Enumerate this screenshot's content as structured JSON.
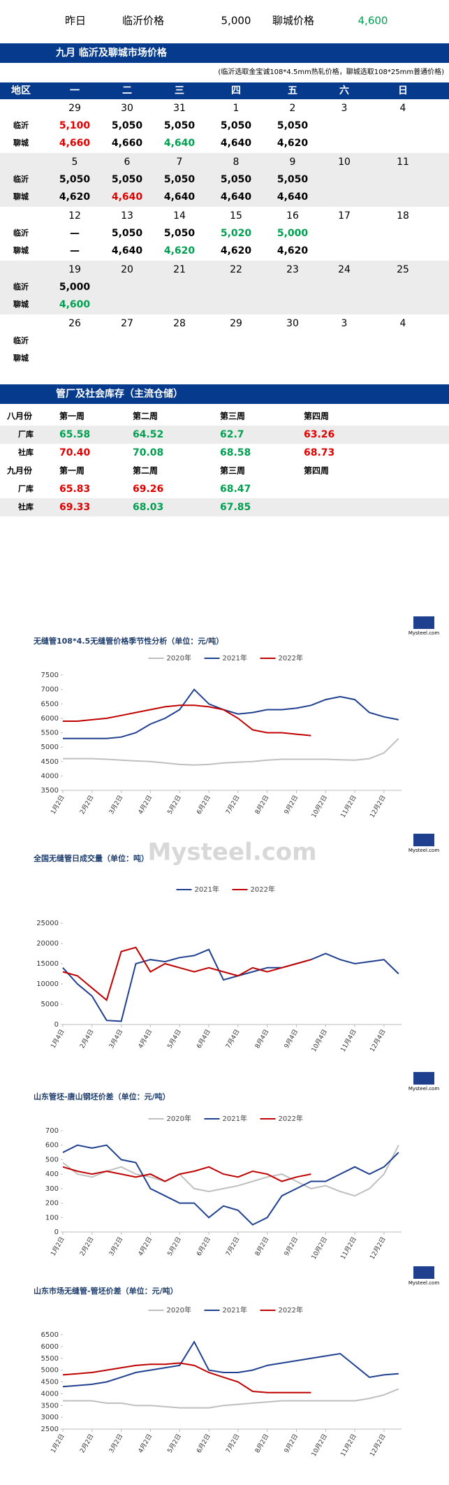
{
  "header": {
    "yesterday": "昨日",
    "linyi_label": "临沂价格",
    "linyi_price": "5,000",
    "liaocheng_label": "聊城价格",
    "liaocheng_price": "4,600",
    "liaocheng_color": "#00a050"
  },
  "calendar": {
    "title": "九月 临沂及聊城市场价格",
    "note": "(临沂选取金宝诚108*4.5mm热轧价格，聊城选取108*25mm普通价格)",
    "header": [
      "地区",
      "一",
      "二",
      "三",
      "四",
      "五",
      "六",
      "日"
    ],
    "row_labels": [
      "临沂",
      "聊城"
    ],
    "weeks": [
      {
        "dates": [
          "29",
          "30",
          "31",
          "1",
          "2",
          "3",
          "4"
        ],
        "linyi": [
          "5,100",
          "5,050",
          "5,050",
          "5,050",
          "5,050"
        ],
        "linyi_colors": [
          "#e00000",
          "#000000",
          "#000000",
          "#000000",
          "#000000"
        ],
        "liaocheng": [
          "4,660",
          "4,660",
          "4,640",
          "4,640",
          "4,620"
        ],
        "liaocheng_colors": [
          "#e00000",
          "#000000",
          "#00a050",
          "#000000",
          "#000000"
        ]
      },
      {
        "dates": [
          "5",
          "6",
          "7",
          "8",
          "9",
          "10",
          "11"
        ],
        "linyi": [
          "5,050",
          "5,050",
          "5,050",
          "5,050",
          "5,050"
        ],
        "linyi_colors": [
          "#000000",
          "#000000",
          "#000000",
          "#000000",
          "#000000"
        ],
        "liaocheng": [
          "4,620",
          "4,640",
          "4,640",
          "4,640",
          "4,640"
        ],
        "liaocheng_colors": [
          "#000000",
          "#e00000",
          "#000000",
          "#000000",
          "#000000"
        ]
      },
      {
        "dates": [
          "12",
          "13",
          "14",
          "15",
          "16",
          "17",
          "18"
        ],
        "linyi": [
          "—",
          "5,050",
          "5,050",
          "5,020",
          "5,000"
        ],
        "linyi_colors": [
          "#000000",
          "#000000",
          "#000000",
          "#00a050",
          "#00a050"
        ],
        "liaocheng": [
          "—",
          "4,640",
          "4,620",
          "4,620",
          "4,620"
        ],
        "liaocheng_colors": [
          "#000000",
          "#000000",
          "#00a050",
          "#000000",
          "#000000"
        ]
      },
      {
        "dates": [
          "19",
          "20",
          "21",
          "22",
          "23",
          "24",
          "25"
        ],
        "linyi": [
          "5,000"
        ],
        "linyi_colors": [
          "#000000"
        ],
        "liaocheng": [
          "4,600"
        ],
        "liaocheng_colors": [
          "#00a050"
        ]
      },
      {
        "dates": [
          "26",
          "27",
          "28",
          "29",
          "30",
          "3",
          "4"
        ],
        "linyi": [],
        "linyi_colors": [],
        "liaocheng": [],
        "liaocheng_colors": []
      }
    ]
  },
  "inventory": {
    "title": "管厂及社会库存（主流仓储）",
    "periods": [
      {
        "name": "八月份",
        "weeks": [
          "第一周",
          "第二周",
          "第三周",
          "第四周"
        ],
        "rows": [
          {
            "label": "厂库",
            "values": [
              "65.58",
              "64.52",
              "62.7",
              "63.26"
            ],
            "colors": [
              "#00a050",
              "#00a050",
              "#00a050",
              "#e00000"
            ]
          },
          {
            "label": "社库",
            "values": [
              "70.40",
              "70.08",
              "68.58",
              "68.73"
            ],
            "colors": [
              "#e00000",
              "#00a050",
              "#00a050",
              "#e00000"
            ]
          }
        ]
      },
      {
        "name": "九月份",
        "weeks": [
          "第一周",
          "第二周",
          "第三周",
          "第四周"
        ],
        "rows": [
          {
            "label": "厂库",
            "values": [
              "65.83",
              "69.26",
              "68.47"
            ],
            "colors": [
              "#e00000",
              "#e00000",
              "#00a050"
            ]
          },
          {
            "label": "社库",
            "values": [
              "69.33",
              "68.03",
              "67.85"
            ],
            "colors": [
              "#e00000",
              "#00a050",
              "#00a050"
            ]
          }
        ]
      }
    ]
  },
  "logo_text": "Mysteel.com",
  "chart_data": [
    {
      "type": "line",
      "title": "无缝管108*4.5无缝管价格季节性分析（单位：元/吨）",
      "x": [
        1,
        1.5,
        2,
        2.5,
        3,
        3.5,
        4,
        4.5,
        5,
        5.5,
        6,
        6.5,
        7,
        7.5,
        8,
        8.5,
        9,
        9.5,
        10,
        10.5,
        11,
        11.5,
        12,
        12.5
      ],
      "xlim": [
        1,
        12.6
      ],
      "xticks": [
        {
          "value": 1,
          "label": "1月2日"
        },
        {
          "value": 2,
          "label": "2月2日"
        },
        {
          "value": 3,
          "label": "3月2日"
        },
        {
          "value": 4,
          "label": "4月2日"
        },
        {
          "value": 5,
          "label": "5月2日"
        },
        {
          "value": 6,
          "label": "6月2日"
        },
        {
          "value": 7,
          "label": "7月2日"
        },
        {
          "value": 8,
          "label": "8月2日"
        },
        {
          "value": 9,
          "label": "9月2日"
        },
        {
          "value": 10,
          "label": "10月2日"
        },
        {
          "value": 11,
          "label": "11月2日"
        },
        {
          "value": 12,
          "label": "12月2日"
        }
      ],
      "ylim": [
        3500,
        7500
      ],
      "yticks": [
        3500,
        4000,
        4500,
        5000,
        5500,
        6000,
        6500,
        7000,
        7500
      ],
      "series": [
        {
          "name": "2020年",
          "color": "#bfbfbf",
          "values": [
            4600,
            4600,
            4600,
            4580,
            4550,
            4520,
            4500,
            4450,
            4400,
            4380,
            4400,
            4450,
            4480,
            4500,
            4550,
            4580,
            4580,
            4580,
            4580,
            4560,
            4550,
            4600,
            4800,
            5300
          ]
        },
        {
          "name": "2021年",
          "color": "#1f3f8f",
          "values": [
            5300,
            5300,
            5300,
            5300,
            5350,
            5500,
            5800,
            6000,
            6300,
            7000,
            6500,
            6300,
            6150,
            6200,
            6300,
            6300,
            6350,
            6450,
            6650,
            6750,
            6650,
            6200,
            6050,
            5950
          ]
        },
        {
          "name": "2022年",
          "color": "#c00000",
          "values": [
            5900,
            5900,
            5950,
            6000,
            6100,
            6200,
            6300,
            6400,
            6450,
            6450,
            6400,
            6300,
            6000,
            5600,
            5500,
            5500,
            5450,
            5400,
            null,
            null,
            null,
            null,
            null,
            null
          ]
        }
      ]
    },
    {
      "type": "line",
      "title": "全国无缝管日成交量（单位：吨）",
      "x": [
        1,
        1.5,
        2,
        2.5,
        3,
        3.5,
        4,
        4.5,
        5,
        5.5,
        6,
        6.5,
        7,
        7.5,
        8,
        8.5,
        9,
        9.5,
        10,
        10.5,
        11,
        11.5,
        12,
        12.5
      ],
      "xlim": [
        1,
        12.6
      ],
      "xticks": [
        {
          "value": 1,
          "label": "1月4日"
        },
        {
          "value": 2,
          "label": "2月4日"
        },
        {
          "value": 3,
          "label": "3月4日"
        },
        {
          "value": 4,
          "label": "4月4日"
        },
        {
          "value": 5,
          "label": "5月4日"
        },
        {
          "value": 6,
          "label": "6月4日"
        },
        {
          "value": 7,
          "label": "7月4日"
        },
        {
          "value": 8,
          "label": "8月4日"
        },
        {
          "value": 9,
          "label": "9月4日"
        },
        {
          "value": 10,
          "label": "10月4日"
        },
        {
          "value": 11,
          "label": "11月4日"
        },
        {
          "value": 12,
          "label": "12月4日"
        }
      ],
      "ylim": [
        0,
        25000
      ],
      "yticks": [
        0,
        5000,
        10000,
        15000,
        20000,
        25000
      ],
      "series": [
        {
          "name": "2021年",
          "color": "#1f3f8f",
          "values": [
            14000,
            10000,
            7000,
            1000,
            800,
            15000,
            16000,
            15500,
            16500,
            17000,
            18500,
            11000,
            12000,
            13000,
            14000,
            14000,
            15000,
            16000,
            17500,
            16000,
            15000,
            15500,
            16000,
            12500
          ]
        },
        {
          "name": "2022年",
          "color": "#c00000",
          "values": [
            13000,
            12000,
            9000,
            6000,
            18000,
            19000,
            13000,
            15000,
            14000,
            13000,
            14000,
            13000,
            12000,
            14000,
            13000,
            14000,
            15000,
            16000,
            null,
            null,
            null,
            null,
            null,
            null
          ]
        }
      ]
    },
    {
      "type": "line",
      "title": "山东管坯-唐山钢坯价差（单位：元/吨）",
      "x": [
        1,
        1.5,
        2,
        2.5,
        3,
        3.5,
        4,
        4.5,
        5,
        5.5,
        6,
        6.5,
        7,
        7.5,
        8,
        8.5,
        9,
        9.5,
        10,
        10.5,
        11,
        11.5,
        12,
        12.5
      ],
      "xlim": [
        1,
        12.6
      ],
      "xticks": [
        {
          "value": 1,
          "label": "1月2日"
        },
        {
          "value": 2,
          "label": "2月2日"
        },
        {
          "value": 3,
          "label": "3月2日"
        },
        {
          "value": 4,
          "label": "4月2日"
        },
        {
          "value": 5,
          "label": "5月2日"
        },
        {
          "value": 6,
          "label": "6月2日"
        },
        {
          "value": 7,
          "label": "7月2日"
        },
        {
          "value": 8,
          "label": "8月2日"
        },
        {
          "value": 9,
          "label": "9月2日"
        },
        {
          "value": 10,
          "label": "10月2日"
        },
        {
          "value": 11,
          "label": "11月2日"
        },
        {
          "value": 12,
          "label": "12月2日"
        }
      ],
      "ylim": [
        0,
        700
      ],
      "yticks": [
        0,
        100,
        200,
        300,
        400,
        500,
        600,
        700
      ],
      "series": [
        {
          "name": "2020年",
          "color": "#bfbfbf",
          "values": [
            480,
            400,
            380,
            420,
            450,
            400,
            380,
            350,
            400,
            300,
            280,
            300,
            320,
            350,
            380,
            400,
            350,
            300,
            320,
            280,
            250,
            300,
            400,
            600
          ]
        },
        {
          "name": "2021年",
          "color": "#1f3f8f",
          "values": [
            550,
            600,
            580,
            600,
            500,
            480,
            300,
            250,
            200,
            200,
            100,
            180,
            150,
            50,
            100,
            250,
            300,
            350,
            350,
            400,
            450,
            400,
            450,
            550
          ]
        },
        {
          "name": "2022年",
          "color": "#c00000",
          "values": [
            450,
            420,
            400,
            420,
            400,
            380,
            400,
            350,
            400,
            420,
            450,
            400,
            380,
            420,
            400,
            350,
            380,
            400,
            null,
            null,
            null,
            null,
            null,
            null
          ]
        }
      ]
    },
    {
      "type": "line",
      "title": "山东市场无缝管-管坯价差（单位：元/吨）",
      "x": [
        1,
        1.5,
        2,
        2.5,
        3,
        3.5,
        4,
        4.5,
        5,
        5.5,
        6,
        6.5,
        7,
        7.5,
        8,
        8.5,
        9,
        9.5,
        10,
        10.5,
        11,
        11.5,
        12,
        12.5
      ],
      "xlim": [
        1,
        12.6
      ],
      "xticks": [
        {
          "value": 1,
          "label": "1月2日"
        },
        {
          "value": 2,
          "label": "2月2日"
        },
        {
          "value": 3,
          "label": "3月2日"
        },
        {
          "value": 4,
          "label": "4月2日"
        },
        {
          "value": 5,
          "label": "5月2日"
        },
        {
          "value": 6,
          "label": "6月2日"
        },
        {
          "value": 7,
          "label": "7月2日"
        },
        {
          "value": 8,
          "label": "8月2日"
        },
        {
          "value": 9,
          "label": "9月2日"
        },
        {
          "value": 10,
          "label": "10月2日"
        },
        {
          "value": 11,
          "label": "11月2日"
        },
        {
          "value": 12,
          "label": "12月2日"
        }
      ],
      "ylim": [
        2500,
        6500
      ],
      "yticks": [
        2500,
        3000,
        3500,
        4000,
        4500,
        5000,
        5500,
        6000,
        6500
      ],
      "series": [
        {
          "name": "2020年",
          "color": "#bfbfbf",
          "values": [
            3700,
            3700,
            3700,
            3600,
            3600,
            3500,
            3500,
            3450,
            3400,
            3400,
            3400,
            3500,
            3550,
            3600,
            3650,
            3700,
            3700,
            3700,
            3700,
            3700,
            3700,
            3800,
            3950,
            4200
          ]
        },
        {
          "name": "2021年",
          "color": "#1f3f8f",
          "values": [
            4300,
            4350,
            4400,
            4500,
            4700,
            4900,
            5000,
            5100,
            5200,
            6200,
            5000,
            4900,
            4900,
            5000,
            5200,
            5300,
            5400,
            5500,
            5600,
            5700,
            5200,
            4700,
            4800,
            4850
          ]
        },
        {
          "name": "2022年",
          "color": "#c00000",
          "values": [
            4800,
            4850,
            4900,
            5000,
            5100,
            5200,
            5250,
            5250,
            5300,
            5200,
            4900,
            4700,
            4500,
            4100,
            4050,
            4050,
            4050,
            4050,
            null,
            null,
            null,
            null,
            null,
            null
          ]
        }
      ]
    }
  ]
}
